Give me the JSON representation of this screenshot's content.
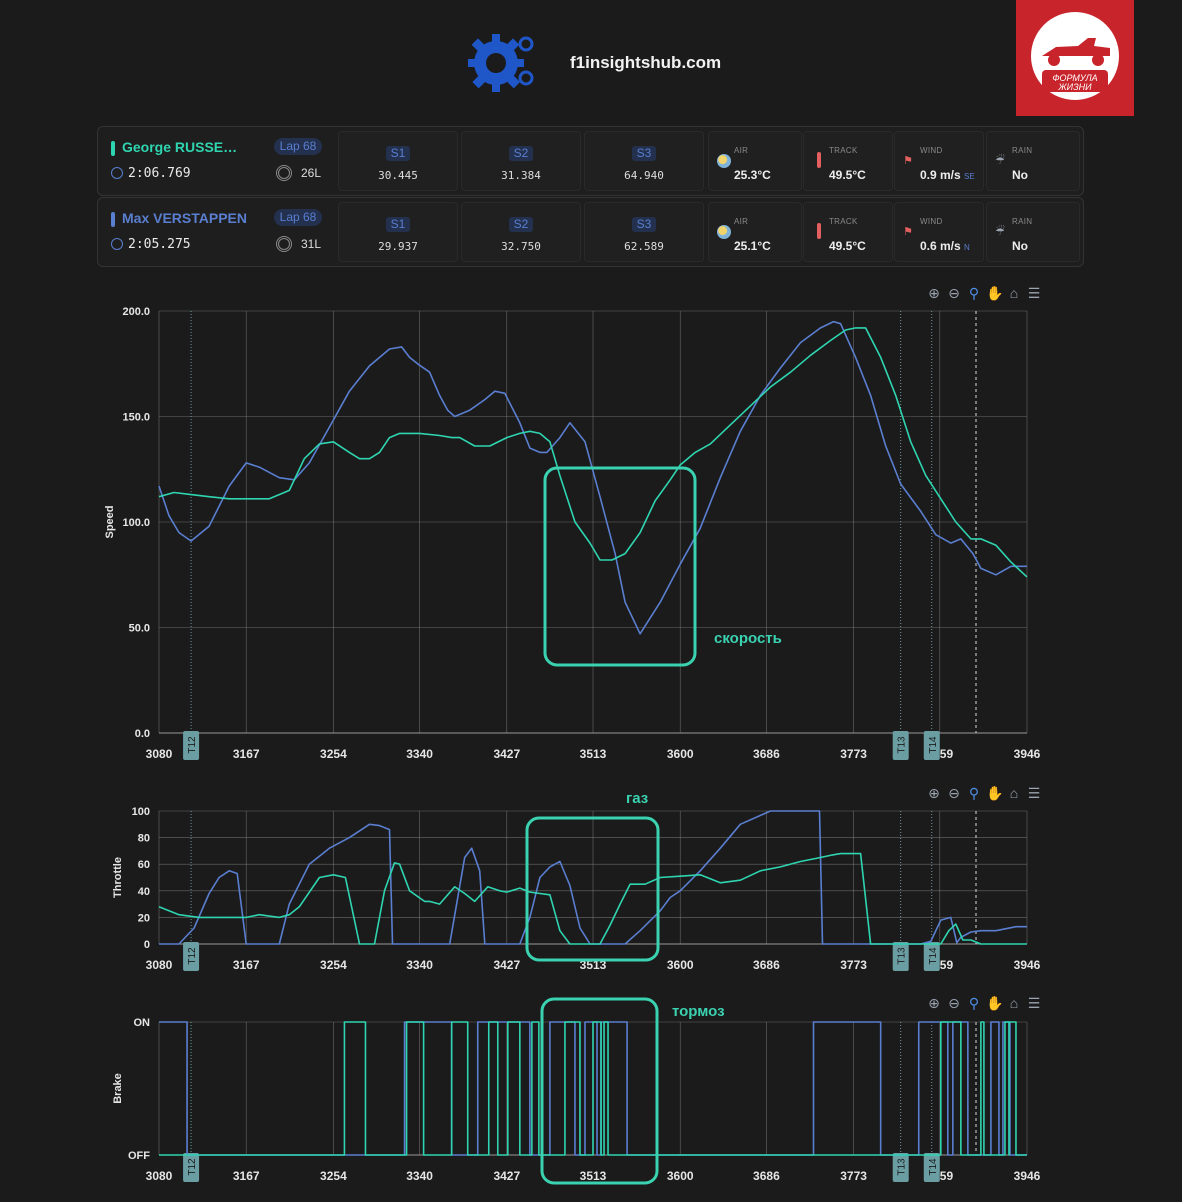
{
  "header": {
    "site": "f1insightshub.com",
    "badge_text": "ФОРМУЛА ЖИЗНИ"
  },
  "colors": {
    "accent_green": "#3ad2b0",
    "accent_blue": "#5a7ed0",
    "grid": "#8a8a8a",
    "badge": "#c8242b"
  },
  "drivers": [
    {
      "name": "George RUSSE…",
      "color": "#2fd5b0",
      "lap": "Lap 68",
      "lap_time": "2:06.769",
      "tyre": "26L",
      "s1_label": "S1",
      "s1": "30.445",
      "s2_label": "S2",
      "s2": "31.384",
      "s3_label": "S3",
      "s3": "64.940",
      "air_label": "AIR",
      "air": "25.3°C",
      "track_label": "TRACK",
      "track": "49.5°C",
      "wind_label": "WIND",
      "wind": "0.9 m/s",
      "wind_dir": "SE",
      "rain_label": "RAIN",
      "rain": "No"
    },
    {
      "name": "Max VERSTAPPEN",
      "color": "#5a7ed0",
      "lap": "Lap 68",
      "lap_time": "2:05.275",
      "tyre": "31L",
      "s1_label": "S1",
      "s1": "29.937",
      "s2_label": "S2",
      "s2": "32.750",
      "s3_label": "S3",
      "s3": "62.589",
      "air_label": "AIR",
      "air": "25.1°C",
      "track_label": "TRACK",
      "track": "49.5°C",
      "wind_label": "WIND",
      "wind": "0.6 m/s",
      "wind_dir": "N",
      "rain_label": "RAIN",
      "rain": "No"
    }
  ],
  "annotations": {
    "speed": "скорость",
    "throttle": "газ",
    "brake": "тормоз"
  },
  "chart_data": [
    {
      "type": "line",
      "title": "",
      "xlabel": "",
      "ylabel": "Speed",
      "xlim": [
        3080,
        3946
      ],
      "ylim": [
        0,
        200
      ],
      "x_ticks": [
        "3080",
        "3167",
        "3254",
        "3340",
        "3427",
        "3513",
        "3600",
        "3686",
        "3773",
        "3859",
        "3946"
      ],
      "y_ticks": [
        "0.0",
        "50.0",
        "100.0",
        "150.0",
        "200.0"
      ],
      "markers": [
        {
          "label": "T12",
          "x": 3112
        },
        {
          "label": "T13",
          "x": 3820
        },
        {
          "label": "T14",
          "x": 3851
        }
      ],
      "series": [
        {
          "name": "Max VERSTAPPEN",
          "color": "#5a7ed0",
          "x": [
            3080,
            3090,
            3100,
            3112,
            3130,
            3150,
            3167,
            3180,
            3200,
            3215,
            3230,
            3250,
            3270,
            3290,
            3310,
            3322,
            3330,
            3338,
            3350,
            3360,
            3368,
            3375,
            3390,
            3405,
            3415,
            3425,
            3440,
            3450,
            3460,
            3467,
            3480,
            3490,
            3505,
            3520,
            3535,
            3545,
            3560,
            3580,
            3600,
            3620,
            3640,
            3660,
            3680,
            3700,
            3720,
            3740,
            3753,
            3760,
            3775,
            3790,
            3805,
            3820,
            3840,
            3855,
            3870,
            3880,
            3892,
            3900,
            3915,
            3930,
            3946
          ],
          "y": [
            117,
            103,
            95,
            91,
            98,
            117,
            128,
            126,
            121,
            120,
            128,
            145,
            162,
            174,
            182,
            183,
            178,
            175,
            171,
            160,
            153,
            150,
            153,
            158,
            162,
            161,
            147,
            135,
            133,
            133,
            140,
            147,
            138,
            112,
            85,
            62,
            47,
            62,
            80,
            97,
            121,
            143,
            160,
            173,
            185,
            192,
            195,
            194,
            178,
            160,
            136,
            118,
            105,
            94,
            90,
            92,
            85,
            78,
            75,
            79,
            79
          ]
        },
        {
          "name": "George RUSSELL",
          "color": "#2fd5b0",
          "x": [
            3080,
            3095,
            3112,
            3130,
            3150,
            3167,
            3190,
            3210,
            3225,
            3240,
            3254,
            3270,
            3280,
            3290,
            3300,
            3310,
            3320,
            3340,
            3360,
            3372,
            3380,
            3395,
            3410,
            3427,
            3440,
            3450,
            3460,
            3470,
            3480,
            3495,
            3510,
            3520,
            3532,
            3545,
            3560,
            3575,
            3590,
            3600,
            3615,
            3630,
            3650,
            3670,
            3690,
            3710,
            3730,
            3750,
            3765,
            3775,
            3785,
            3800,
            3815,
            3830,
            3845,
            3860,
            3875,
            3890,
            3900,
            3915,
            3930,
            3946
          ],
          "y": [
            112,
            114,
            113,
            112,
            111,
            111,
            111,
            115,
            130,
            137,
            138,
            133,
            130,
            130,
            133,
            140,
            142,
            142,
            141,
            140,
            140,
            136,
            136,
            140,
            142,
            143,
            142,
            138,
            122,
            100,
            90,
            82,
            82,
            85,
            95,
            110,
            120,
            127,
            133,
            137,
            146,
            155,
            164,
            171,
            179,
            186,
            191,
            192,
            192,
            178,
            160,
            138,
            122,
            111,
            100,
            92,
            92,
            89,
            81,
            74
          ]
        }
      ]
    },
    {
      "type": "line",
      "title": "",
      "xlabel": "",
      "ylabel": "Throttle",
      "xlim": [
        3080,
        3946
      ],
      "ylim": [
        0,
        100
      ],
      "x_ticks": [
        "3080",
        "3167",
        "3254",
        "3340",
        "3427",
        "3513",
        "3600",
        "3686",
        "3773",
        "3859",
        "3946"
      ],
      "y_ticks": [
        "0",
        "20",
        "40",
        "60",
        "80",
        "100"
      ],
      "markers": [
        {
          "label": "T12",
          "x": 3112
        },
        {
          "label": "T13",
          "x": 3820
        },
        {
          "label": "T14",
          "x": 3851
        }
      ],
      "series": [
        {
          "name": "Max VERSTAPPEN",
          "color": "#5a7ed0",
          "x": [
            3080,
            3100,
            3115,
            3130,
            3140,
            3150,
            3158,
            3167,
            3175,
            3188,
            3200,
            3210,
            3230,
            3250,
            3270,
            3290,
            3300,
            3310,
            3313,
            3320,
            3335,
            3350,
            3360,
            3370,
            3385,
            3392,
            3400,
            3405,
            3410,
            3415,
            3420,
            3430,
            3440,
            3450,
            3460,
            3470,
            3480,
            3490,
            3500,
            3510,
            3520,
            3545,
            3560,
            3580,
            3590,
            3600,
            3620,
            3640,
            3660,
            3690,
            3710,
            3720,
            3730,
            3739,
            3742,
            3750,
            3770,
            3785,
            3800,
            3820,
            3840,
            3850,
            3860,
            3870,
            3876,
            3880,
            3890,
            3900,
            3915,
            3935,
            3946
          ],
          "y": [
            0,
            0,
            12,
            38,
            50,
            55,
            53,
            0,
            0,
            0,
            0,
            30,
            60,
            72,
            80,
            90,
            89,
            86,
            0,
            0,
            0,
            0,
            0,
            0,
            65,
            72,
            55,
            0,
            0,
            0,
            0,
            0,
            0,
            20,
            50,
            58,
            62,
            44,
            12,
            0,
            0,
            0,
            10,
            25,
            35,
            40,
            55,
            72,
            90,
            100,
            100,
            100,
            100,
            100,
            0,
            0,
            0,
            0,
            0,
            0,
            0,
            2,
            18,
            20,
            1,
            5,
            9,
            10,
            10,
            13,
            13
          ]
        },
        {
          "name": "George RUSSELL",
          "color": "#2fd5b0",
          "x": [
            3080,
            3100,
            3120,
            3140,
            3160,
            3167,
            3180,
            3200,
            3210,
            3220,
            3240,
            3254,
            3266,
            3280,
            3295,
            3305,
            3315,
            3320,
            3330,
            3345,
            3350,
            3360,
            3375,
            3385,
            3395,
            3408,
            3420,
            3427,
            3440,
            3450,
            3460,
            3470,
            3480,
            3490,
            3500,
            3510,
            3520,
            3530,
            3540,
            3550,
            3565,
            3580,
            3600,
            3620,
            3640,
            3660,
            3680,
            3700,
            3720,
            3740,
            3752,
            3760,
            3780,
            3790,
            3795,
            3810,
            3850,
            3860,
            3868,
            3875,
            3882,
            3890,
            3900,
            3946
          ],
          "y": [
            28,
            22,
            20,
            20,
            20,
            20,
            22,
            20,
            22,
            28,
            50,
            52,
            50,
            0,
            0,
            40,
            61,
            60,
            40,
            32,
            32,
            30,
            43,
            38,
            32,
            43,
            40,
            39,
            42,
            39,
            38,
            37,
            10,
            0,
            0,
            0,
            0,
            14,
            30,
            45,
            45,
            50,
            51,
            52,
            46,
            48,
            55,
            58,
            62,
            65,
            67,
            68,
            68,
            0,
            0,
            0,
            0,
            0,
            10,
            15,
            3,
            3,
            0,
            0
          ]
        }
      ]
    },
    {
      "type": "line",
      "title": "",
      "xlabel": "",
      "ylabel": "Brake",
      "xlim": [
        3080,
        3946
      ],
      "ylim": [
        0,
        1
      ],
      "x_ticks": [
        "3080",
        "3167",
        "3254",
        "3340",
        "3427",
        "3513",
        "3600",
        "3686",
        "3773",
        "3859",
        "3946"
      ],
      "y_ticks": [
        "OFF",
        "ON"
      ],
      "markers": [
        {
          "label": "T12",
          "x": 3112
        },
        {
          "label": "T13",
          "x": 3820
        },
        {
          "label": "T14",
          "x": 3851
        }
      ],
      "series": [
        {
          "name": "Max VERSTAPPEN",
          "color": "#5a7ed0",
          "on_intervals": [
            [
              3080,
              3108
            ],
            [
              3325,
              3372
            ],
            [
              3398,
              3450
            ],
            [
              3470,
              3495
            ],
            [
              3505,
              3517
            ],
            [
              3521,
              3547
            ],
            [
              3733,
              3800
            ],
            [
              3838,
              3867
            ],
            [
              3872,
              3887
            ],
            [
              3910,
              3918
            ],
            [
              3922,
              3929
            ]
          ]
        },
        {
          "name": "George RUSSELL",
          "color": "#2fd5b0",
          "on_intervals": [
            [
              3265,
              3286
            ],
            [
              3327,
              3344
            ],
            [
              3372,
              3388
            ],
            [
              3409,
              3418
            ],
            [
              3428,
              3440
            ],
            [
              3452,
              3459
            ],
            [
              3485,
              3500
            ],
            [
              3513,
              3521
            ],
            [
              3524,
              3528
            ],
            [
              3860,
              3880
            ],
            [
              3900,
              3903
            ],
            [
              3924,
              3928
            ],
            [
              3928,
              3935
            ]
          ]
        }
      ]
    }
  ]
}
